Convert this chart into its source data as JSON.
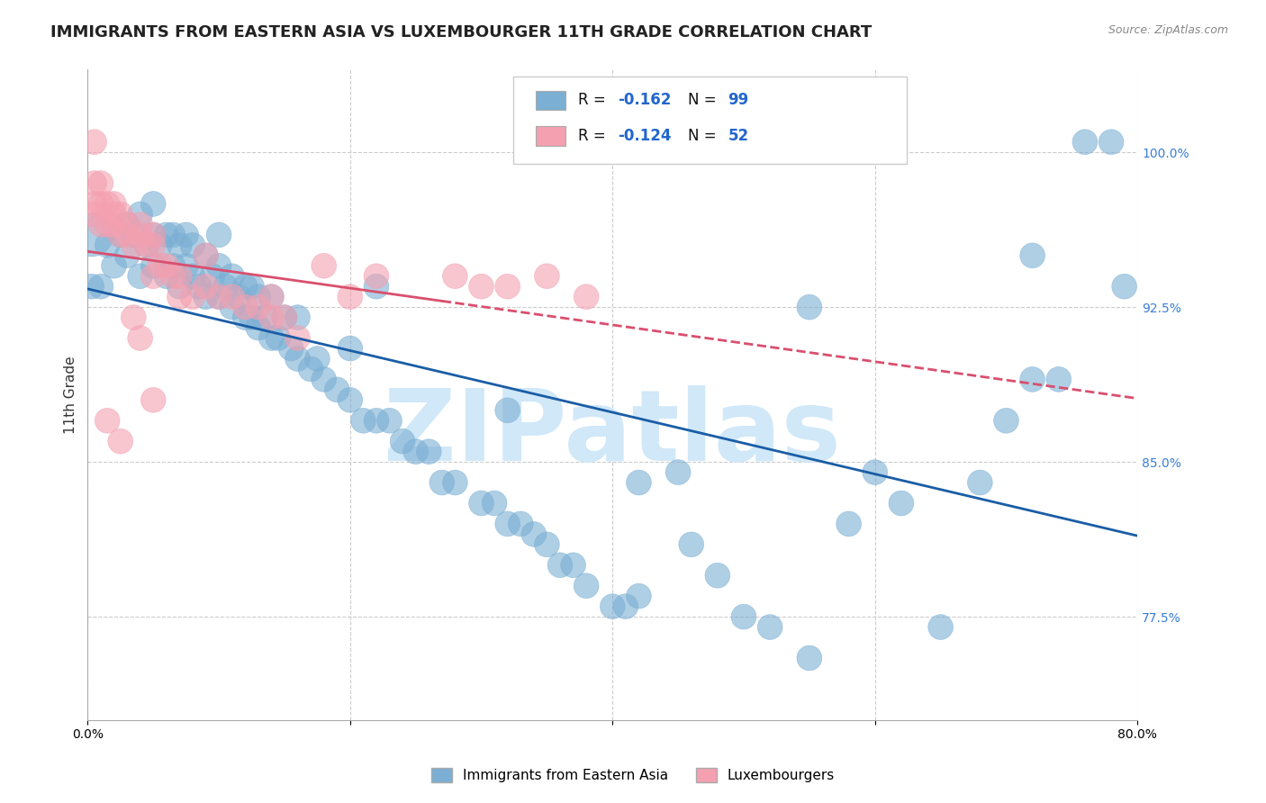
{
  "title": "IMMIGRANTS FROM EASTERN ASIA VS LUXEMBOURGER 11TH GRADE CORRELATION CHART",
  "source": "Source: ZipAtlas.com",
  "ylabel": "11th Grade",
  "ylabel_color": "#333333",
  "right_ytick_values": [
    1.0,
    0.925,
    0.85,
    0.775
  ],
  "xmin": 0.0,
  "xmax": 0.8,
  "ymin": 0.725,
  "ymax": 1.04,
  "legend_r_blue": "-0.162",
  "legend_n_blue": "99",
  "legend_r_pink": "-0.124",
  "legend_n_pink": "52",
  "blue_color": "#7bafd4",
  "pink_color": "#f4a0b0",
  "blue_line_color": "#1a5da6",
  "pink_line_color": "#d94f6e",
  "watermark": "ZIPatlas",
  "watermark_color": "#d0e8f8",
  "blue_scatter_x": [
    0.003,
    0.003,
    0.01,
    0.015,
    0.02,
    0.025,
    0.03,
    0.03,
    0.035,
    0.04,
    0.04,
    0.045,
    0.05,
    0.05,
    0.05,
    0.055,
    0.06,
    0.06,
    0.065,
    0.065,
    0.07,
    0.07,
    0.075,
    0.075,
    0.08,
    0.08,
    0.085,
    0.09,
    0.09,
    0.095,
    0.1,
    0.1,
    0.1,
    0.105,
    0.11,
    0.11,
    0.115,
    0.12,
    0.12,
    0.125,
    0.125,
    0.13,
    0.13,
    0.135,
    0.14,
    0.14,
    0.145,
    0.15,
    0.155,
    0.16,
    0.16,
    0.17,
    0.175,
    0.18,
    0.19,
    0.2,
    0.2,
    0.21,
    0.22,
    0.23,
    0.24,
    0.25,
    0.26,
    0.27,
    0.28,
    0.3,
    0.31,
    0.32,
    0.33,
    0.34,
    0.35,
    0.36,
    0.37,
    0.38,
    0.4,
    0.41,
    0.42,
    0.45,
    0.46,
    0.48,
    0.5,
    0.52,
    0.55,
    0.58,
    0.6,
    0.62,
    0.65,
    0.68,
    0.7,
    0.72,
    0.74,
    0.76,
    0.78,
    0.79,
    0.72,
    0.55,
    0.22,
    0.32,
    0.42
  ],
  "blue_scatter_y": [
    0.935,
    0.96,
    0.935,
    0.955,
    0.945,
    0.96,
    0.95,
    0.965,
    0.96,
    0.94,
    0.97,
    0.955,
    0.945,
    0.96,
    0.975,
    0.955,
    0.94,
    0.96,
    0.945,
    0.96,
    0.935,
    0.955,
    0.945,
    0.96,
    0.94,
    0.955,
    0.935,
    0.93,
    0.95,
    0.94,
    0.93,
    0.945,
    0.96,
    0.935,
    0.925,
    0.94,
    0.93,
    0.92,
    0.935,
    0.92,
    0.935,
    0.915,
    0.93,
    0.92,
    0.91,
    0.93,
    0.91,
    0.92,
    0.905,
    0.9,
    0.92,
    0.895,
    0.9,
    0.89,
    0.885,
    0.88,
    0.905,
    0.87,
    0.87,
    0.87,
    0.86,
    0.855,
    0.855,
    0.84,
    0.84,
    0.83,
    0.83,
    0.82,
    0.82,
    0.815,
    0.81,
    0.8,
    0.8,
    0.79,
    0.78,
    0.78,
    0.785,
    0.845,
    0.81,
    0.795,
    0.775,
    0.77,
    0.755,
    0.82,
    0.845,
    0.83,
    0.77,
    0.84,
    0.87,
    0.89,
    0.89,
    1.005,
    1.005,
    0.935,
    0.95,
    0.925,
    0.935,
    0.875,
    0.84
  ],
  "blue_scatter_size": [
    400,
    1200,
    400,
    400,
    400,
    400,
    400,
    400,
    400,
    400,
    400,
    400,
    400,
    400,
    400,
    400,
    400,
    400,
    400,
    400,
    400,
    400,
    400,
    400,
    400,
    400,
    400,
    400,
    400,
    400,
    400,
    400,
    400,
    400,
    400,
    400,
    400,
    400,
    400,
    400,
    400,
    400,
    400,
    400,
    400,
    400,
    400,
    400,
    400,
    400,
    400,
    400,
    400,
    400,
    400,
    400,
    400,
    400,
    400,
    400,
    400,
    400,
    400,
    400,
    400,
    400,
    400,
    400,
    400,
    400,
    400,
    400,
    400,
    400,
    400,
    400,
    400,
    400,
    400,
    400,
    400,
    400,
    400,
    400,
    400,
    400,
    400,
    400,
    400,
    400,
    400,
    400,
    400,
    400,
    400,
    400,
    400,
    400,
    400
  ],
  "pink_scatter_x": [
    0.005,
    0.005,
    0.005,
    0.01,
    0.01,
    0.01,
    0.015,
    0.015,
    0.02,
    0.02,
    0.02,
    0.025,
    0.025,
    0.03,
    0.03,
    0.035,
    0.04,
    0.04,
    0.045,
    0.05,
    0.05,
    0.055,
    0.06,
    0.065,
    0.07,
    0.08,
    0.09,
    0.1,
    0.11,
    0.12,
    0.13,
    0.14,
    0.15,
    0.16,
    0.18,
    0.2,
    0.22,
    0.28,
    0.32,
    0.35,
    0.38,
    0.3,
    0.09,
    0.05,
    0.04,
    0.14,
    0.05,
    0.07,
    0.035,
    0.025,
    0.015,
    0.005
  ],
  "pink_scatter_y": [
    0.97,
    0.975,
    0.985,
    0.965,
    0.975,
    0.985,
    0.965,
    0.975,
    0.965,
    0.97,
    0.975,
    0.96,
    0.97,
    0.96,
    0.965,
    0.955,
    0.96,
    0.965,
    0.955,
    0.955,
    0.96,
    0.945,
    0.945,
    0.94,
    0.94,
    0.93,
    0.935,
    0.93,
    0.93,
    0.925,
    0.925,
    0.92,
    0.92,
    0.91,
    0.945,
    0.93,
    0.94,
    0.94,
    0.935,
    0.94,
    0.93,
    0.935,
    0.95,
    0.88,
    0.91,
    0.93,
    0.94,
    0.93,
    0.92,
    0.86,
    0.87,
    1.005
  ],
  "pink_scatter_size": [
    400,
    400,
    400,
    400,
    400,
    400,
    400,
    400,
    400,
    400,
    400,
    400,
    400,
    400,
    400,
    400,
    400,
    400,
    400,
    400,
    400,
    400,
    400,
    400,
    400,
    400,
    400,
    400,
    400,
    400,
    400,
    400,
    400,
    400,
    400,
    400,
    400,
    400,
    400,
    400,
    400,
    400,
    400,
    400,
    400,
    400,
    400,
    400,
    400,
    400,
    400,
    400
  ],
  "grid_color": "#cccccc",
  "background_color": "#ffffff",
  "title_fontsize": 13,
  "axis_label_fontsize": 11,
  "tick_fontsize": 10,
  "legend_label_blue": "Immigrants from Eastern Asia",
  "legend_label_pink": "Luxembourgers"
}
